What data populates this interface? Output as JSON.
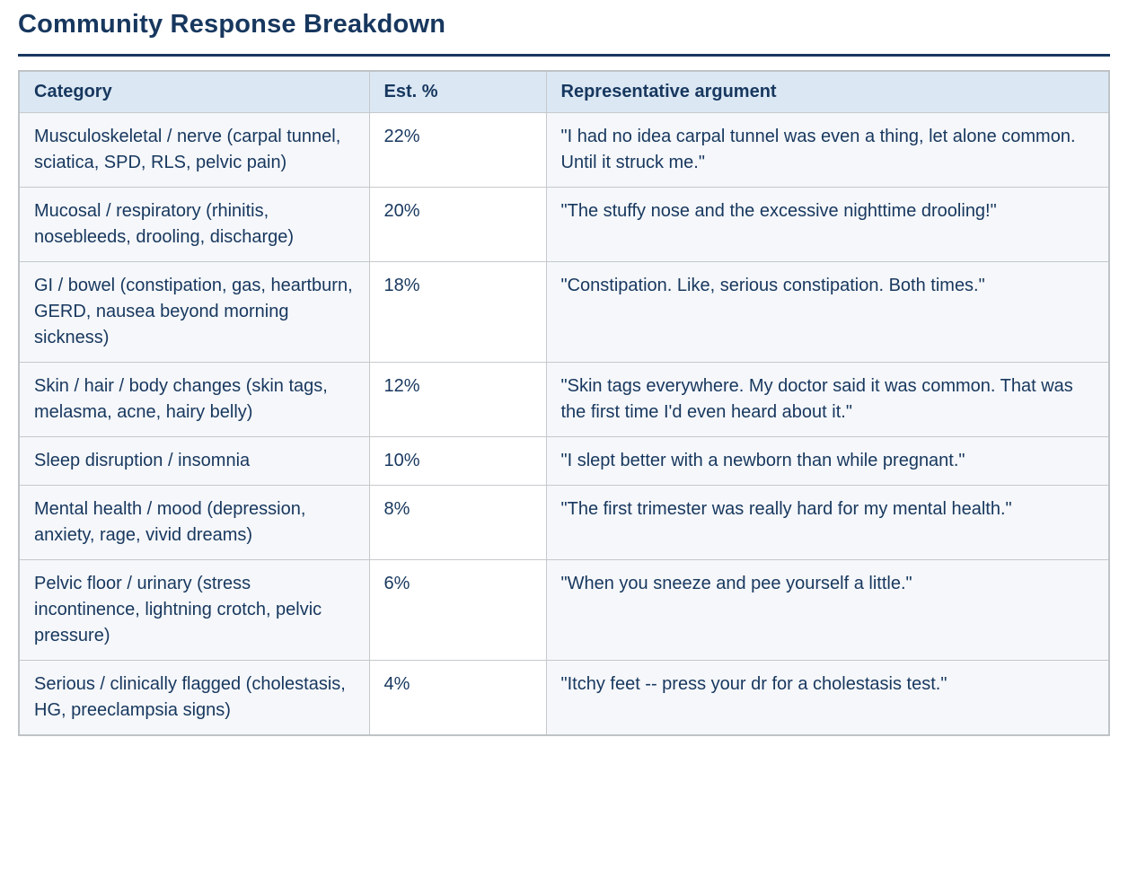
{
  "page": {
    "title": "Community Response Breakdown"
  },
  "table": {
    "columns": [
      "Category",
      "Est. %",
      "Representative argument"
    ],
    "rows": [
      {
        "category": "Musculoskeletal / nerve (carpal tunnel, sciatica, SPD, RLS, pelvic pain)",
        "pct": "22%",
        "argument": "\"I had no idea carpal tunnel was even a thing, let alone common. Until it struck me.\""
      },
      {
        "category": "Mucosal / respiratory (rhinitis, nosebleeds, drooling, discharge)",
        "pct": "20%",
        "argument": "\"The stuffy nose and the excessive nighttime drooling!\""
      },
      {
        "category": "GI / bowel (constipation, gas, heartburn, GERD, nausea beyond morning sickness)",
        "pct": "18%",
        "argument": "\"Constipation. Like, serious constipation. Both times.\""
      },
      {
        "category": "Skin / hair / body changes (skin tags, melasma, acne, hairy belly)",
        "pct": "12%",
        "argument": "\"Skin tags everywhere. My doctor said it was common. That was the first time I'd even heard about it.\""
      },
      {
        "category": "Sleep disruption / insomnia",
        "pct": "10%",
        "argument": "\"I slept better with a newborn than while pregnant.\""
      },
      {
        "category": "Mental health / mood (depression, anxiety, rage, vivid dreams)",
        "pct": "8%",
        "argument": "\"The first trimester was really hard for my mental health.\""
      },
      {
        "category": "Pelvic floor / urinary (stress incontinence, lightning crotch, pelvic pressure)",
        "pct": "6%",
        "argument": "\"When you sneeze and pee yourself a little.\""
      },
      {
        "category": "Serious / clinically flagged (cholestasis, HG, preeclampsia signs)",
        "pct": "4%",
        "argument": "\"Itchy feet -- press your dr for a cholestasis test.\""
      }
    ]
  },
  "colors": {
    "accent": "#17375e",
    "header_bg": "#dbe8f4",
    "stripe_bg": "#f5f7fa",
    "border": "#c6c9cc"
  }
}
